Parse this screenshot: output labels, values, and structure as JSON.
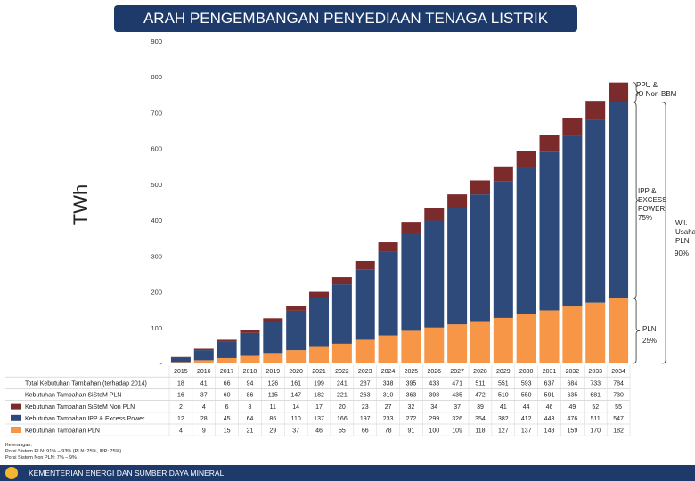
{
  "header": {
    "title": "ARAH PENGEMBANGAN PENYEDIAAN TENAGA LISTRIK"
  },
  "chart_data": {
    "type": "bar",
    "stacked": true,
    "ylabel": "TWh",
    "ylim": [
      0,
      900
    ],
    "y_ticks": [
      0,
      100,
      200,
      300,
      400,
      500,
      600,
      700,
      800,
      900
    ],
    "y_tick_labels": [
      "-",
      "100",
      "200",
      "300",
      "400",
      "500",
      "600",
      "700",
      "800",
      "900"
    ],
    "categories": [
      "2015",
      "2016",
      "2017",
      "2018",
      "2019",
      "2020",
      "2021",
      "2022",
      "2023",
      "2024",
      "2025",
      "2026",
      "2027",
      "2028",
      "2029",
      "2030",
      "2031",
      "2032",
      "2033",
      "2034"
    ],
    "series": [
      {
        "name": "Kebutuhan Tambahan PLN",
        "color": "#f79646",
        "values": [
          4,
          9,
          15,
          21,
          29,
          37,
          46,
          55,
          66,
          78,
          91,
          100,
          109,
          118,
          127,
          137,
          148,
          159,
          170,
          182
        ]
      },
      {
        "name": "Kebutuhan Tambahan IPP & Excess Power",
        "color": "#2e4a7a",
        "values": [
          12,
          28,
          45,
          64,
          86,
          110,
          137,
          166,
          197,
          233,
          272,
          299,
          326,
          354,
          382,
          412,
          443,
          476,
          511,
          547
        ]
      },
      {
        "name": "Kebutuhan Tambahan SiSteM Non PLN",
        "color": "#7b2b2b",
        "values": [
          2,
          4,
          6,
          8,
          11,
          14,
          17,
          20,
          23,
          27,
          32,
          34,
          37,
          39,
          41,
          44,
          46,
          49,
          52,
          55
        ]
      }
    ],
    "table": {
      "rows": [
        {
          "label": "Total Kebutuhan Tambahan (terhadap 2014)",
          "values": [
            "18",
            "41",
            "66",
            "94",
            "126",
            "161",
            "199",
            "241",
            "287",
            "338",
            "395",
            "433",
            "471",
            "511",
            "551",
            "593",
            "637",
            "684",
            "733",
            "784"
          ]
        },
        {
          "label": "Kebutuhan Tambahan SiSteM PLN",
          "values": [
            "16",
            "37",
            "60",
            "86",
            "115",
            "147",
            "182",
            "221",
            "263",
            "310",
            "363",
            "398",
            "435",
            "472",
            "510",
            "550",
            "591",
            "635",
            "681",
            "730"
          ]
        },
        {
          "label": "Kebutuhan Tambahan SiSteM Non PLN",
          "values": [
            "2",
            "4",
            "6",
            "8",
            "11",
            "14",
            "17",
            "20",
            "23",
            "27",
            "32",
            "34",
            "37",
            "39",
            "41",
            "44",
            "46",
            "49",
            "52",
            "55"
          ]
        },
        {
          "label": "Kebutuhan Tambahan IPP & Excess Power",
          "values": [
            "12",
            "28",
            "45",
            "64",
            "86",
            "110",
            "137",
            "166",
            "197",
            "233",
            "272",
            "299",
            "326",
            "354",
            "382",
            "412",
            "443",
            "476",
            "511",
            "547"
          ]
        },
        {
          "label": "Kebutuhan Tambahan PLN",
          "values": [
            "4",
            "9",
            "15",
            "21",
            "29",
            "37",
            "46",
            "55",
            "66",
            "78",
            "91",
            "100",
            "109",
            "118",
            "127",
            "137",
            "148",
            "159",
            "170",
            "182"
          ]
        }
      ]
    },
    "annotations": {
      "ppu": [
        "PPU &",
        "IO Non-BBM"
      ],
      "ipp": [
        "IPP &",
        "EXCESS",
        "POWER",
        "75%"
      ],
      "wil": [
        "Wil.",
        "Usaha",
        "PLN"
      ],
      "pct90": "90%",
      "pln": [
        "PLN",
        "25%"
      ]
    }
  },
  "notes": {
    "heading": "Keterangan:",
    "line1": "Porsi Sistem PLN: 91% – 93% (PLN: 25%, IPP: 75%)",
    "line2": "Porsi Sistem Non PLN: 7% – 9%"
  },
  "footer": {
    "text": "KEMENTERIAN ENERGI DAN SUMBER DAYA MINERAL"
  }
}
